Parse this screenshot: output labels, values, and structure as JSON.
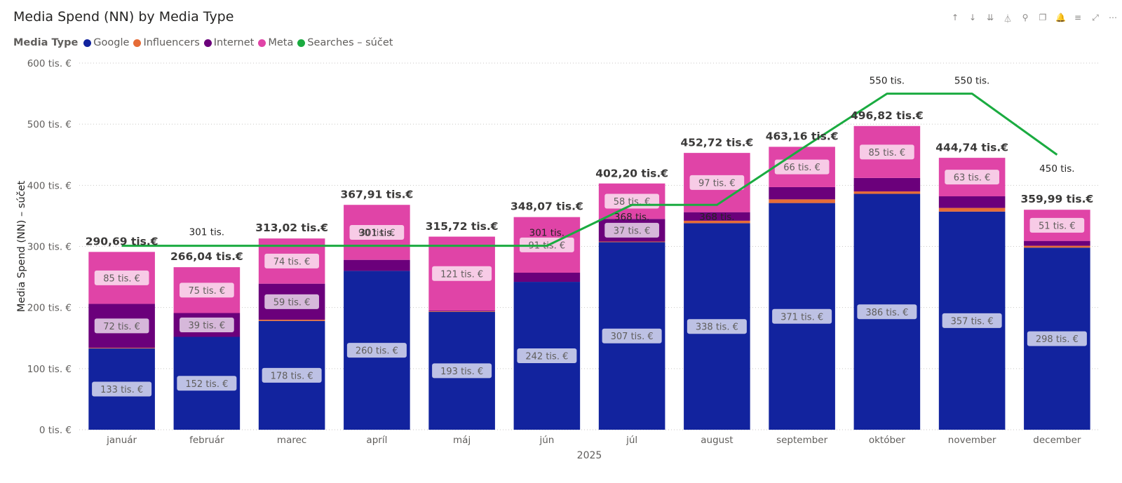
{
  "title": "Media Spend (NN) by Media Type",
  "legend": {
    "title": "Media Type",
    "items": [
      {
        "label": "Google",
        "color": "#12239E"
      },
      {
        "label": "Influencers",
        "color": "#E66C37"
      },
      {
        "label": "Internet",
        "color": "#6B007B"
      },
      {
        "label": "Meta",
        "color": "#E044A7"
      },
      {
        "label": "Searches – súčet",
        "color": "#1AAB40"
      }
    ]
  },
  "toolbar": {
    "icons": [
      "arrow-up-icon",
      "arrow-down-icon",
      "double-arrow-down-icon",
      "expand-hierarchy-icon",
      "pin-icon",
      "copy-icon",
      "bell-icon",
      "filter-icon",
      "focus-mode-icon",
      "more-options-icon"
    ],
    "glyphs": [
      "↑",
      "↓",
      "⇊",
      "⏃",
      "⚲",
      "❐",
      "🔔",
      "≡",
      "⤢",
      "⋯"
    ]
  },
  "chart_data": {
    "type": "bar",
    "stacked": true,
    "title": "Media Spend (NN) by Media Type",
    "xlabel": "2025",
    "ylabel": "Media Spend (NN) – súčet",
    "ylim": [
      0,
      600
    ],
    "yticks": [
      0,
      100,
      200,
      300,
      400,
      500,
      600
    ],
    "ytick_labels": [
      "0 tis. €",
      "100 tis. €",
      "200 tis. €",
      "300 tis. €",
      "400 tis. €",
      "500 tis. €",
      "600 tis. €"
    ],
    "grid": true,
    "legend_position": "top-left",
    "categories": [
      "január",
      "február",
      "marec",
      "apríl",
      "máj",
      "jún",
      "júl",
      "august",
      "september",
      "október",
      "november",
      "december"
    ],
    "series": [
      {
        "name": "Google",
        "color": "#12239E",
        "values": [
          133,
          152,
          178,
          260,
          193,
          242,
          307,
          338,
          371,
          386,
          357,
          298
        ],
        "labels": [
          "133 tis. €",
          "152 tis. €",
          "178 tis. €",
          "260 tis. €",
          "193 tis. €",
          "242 tis. €",
          "307 tis. €",
          "338 tis. €",
          "371 tis. €",
          "386 tis. €",
          "357 tis. €",
          "298 tis. €"
        ]
      },
      {
        "name": "Influencers",
        "color": "#E66C37",
        "values": [
          1,
          0,
          2,
          0,
          1,
          0,
          1,
          4,
          6,
          4,
          6,
          3
        ],
        "labels": [
          "",
          "",
          "",
          "",
          "",
          "",
          "",
          "",
          "",
          "",
          "",
          ""
        ]
      },
      {
        "name": "Internet",
        "color": "#6B007B",
        "values": [
          72,
          39,
          59,
          18,
          1,
          15,
          37,
          14,
          20,
          22,
          19,
          8
        ],
        "labels": [
          "72 tis. €",
          "39 tis. €",
          "59 tis. €",
          "",
          "",
          "",
          "37 tis. €",
          "",
          "",
          "",
          "",
          ""
        ]
      },
      {
        "name": "Meta",
        "color": "#E044A7",
        "values": [
          85,
          75,
          74,
          90,
          121,
          91,
          58,
          97,
          66,
          85,
          63,
          51
        ],
        "labels": [
          "85 tis. €",
          "75 tis. €",
          "74 tis. €",
          "90 tis. €",
          "121 tis. €",
          "91 tis. €",
          "58 tis. €",
          "97 tis. €",
          "66 tis. €",
          "85 tis. €",
          "63 tis. €",
          "51 tis. €"
        ]
      }
    ],
    "totals": [
      290.69,
      266.04,
      313.02,
      367.91,
      315.72,
      348.07,
      402.2,
      452.72,
      463.16,
      496.82,
      444.74,
      359.99
    ],
    "total_labels": [
      "290,69 tis.€",
      "266,04 tis.€",
      "313,02 tis.€",
      "367,91 tis.€",
      "315,72 tis.€",
      "348,07 tis.€",
      "402,20 tis.€",
      "452,72 tis.€",
      "463,16 tis.€",
      "496,82 tis.€",
      "444,74 tis.€",
      "359,99 tis.€"
    ],
    "line": {
      "name": "Searches – súčet",
      "color": "#1AAB40",
      "values": [
        301,
        301,
        301,
        301,
        301,
        301,
        368,
        368,
        460,
        550,
        550,
        450
      ],
      "labels": [
        "",
        "301 tis.",
        "",
        "301 tis.",
        "",
        "301 tis.",
        "368 tis.",
        "368 tis.",
        "",
        "550 tis.",
        "550 tis.",
        "450 tis."
      ]
    }
  }
}
